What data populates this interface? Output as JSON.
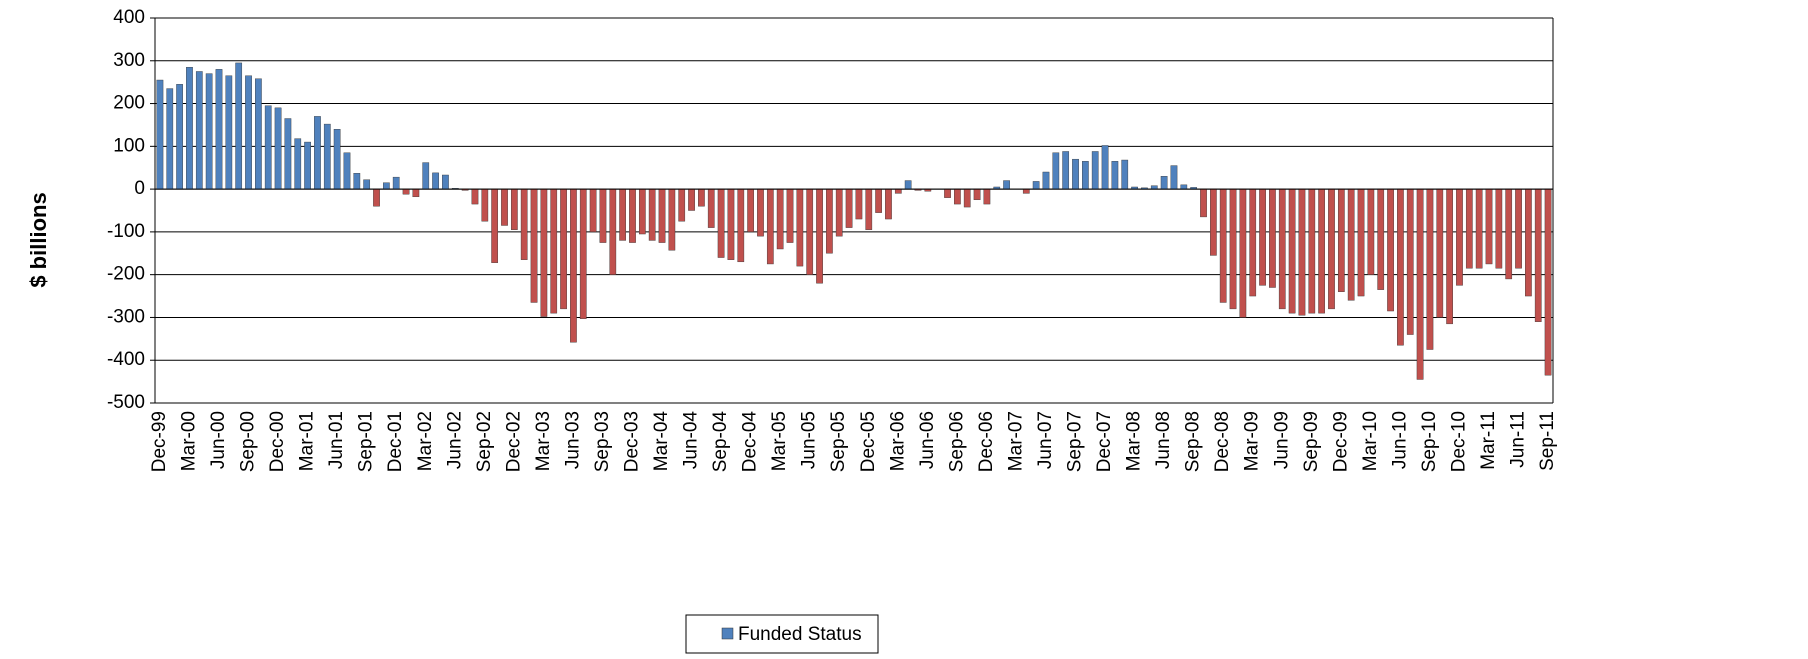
{
  "chart_data": {
    "type": "bar",
    "y_label": "$ billions",
    "ylim": [
      -500,
      400
    ],
    "yticks": [
      -500,
      -400,
      -300,
      -200,
      -100,
      0,
      100,
      200,
      300,
      400
    ],
    "grid": true,
    "legend": "bottom",
    "negative_color": "#c0504d",
    "categories": [
      "Dec-99",
      null,
      null,
      "Mar-00",
      null,
      null,
      "Jun-00",
      null,
      null,
      "Sep-00",
      null,
      null,
      "Dec-00",
      null,
      null,
      "Mar-01",
      null,
      null,
      "Jun-01",
      null,
      null,
      "Sep-01",
      null,
      null,
      "Dec-01",
      null,
      null,
      "Mar-02",
      null,
      null,
      "Jun-02",
      null,
      null,
      "Sep-02",
      null,
      null,
      "Dec-02",
      null,
      null,
      "Mar-03",
      null,
      null,
      "Jun-03",
      null,
      null,
      "Sep-03",
      null,
      null,
      "Dec-03",
      null,
      null,
      "Mar-04",
      null,
      null,
      "Jun-04",
      null,
      null,
      "Sep-04",
      null,
      null,
      "Dec-04",
      null,
      null,
      "Mar-05",
      null,
      null,
      "Jun-05",
      null,
      null,
      "Sep-05",
      null,
      null,
      "Dec-05",
      null,
      null,
      "Mar-06",
      null,
      null,
      "Jun-06",
      null,
      null,
      "Sep-06",
      null,
      null,
      "Dec-06",
      null,
      null,
      "Mar-07",
      null,
      null,
      "Jun-07",
      null,
      null,
      "Sep-07",
      null,
      null,
      "Dec-07",
      null,
      null,
      "Mar-08",
      null,
      null,
      "Jun-08",
      null,
      null,
      "Sep-08",
      null,
      null,
      "Dec-08",
      null,
      null,
      "Mar-09",
      null,
      null,
      "Jun-09",
      null,
      null,
      "Sep-09",
      null,
      null,
      "Dec-09",
      null,
      null,
      "Mar-10",
      null,
      null,
      "Jun-10",
      null,
      null,
      "Sep-10",
      null,
      null,
      "Dec-10",
      null,
      null,
      "Mar-11",
      null,
      null,
      "Jun-11",
      null,
      null,
      "Sep-11"
    ],
    "series": [
      {
        "name": "Funded Status",
        "color": "#4f81bd",
        "values": [
          255,
          235,
          245,
          285,
          275,
          270,
          280,
          265,
          295,
          265,
          258,
          195,
          190,
          165,
          118,
          110,
          170,
          152,
          140,
          85,
          37,
          22,
          -40,
          15,
          28,
          -12,
          -18,
          62,
          38,
          33,
          2,
          -3,
          -35,
          -75,
          -172,
          -85,
          -95,
          -165,
          -265,
          -298,
          -290,
          -280,
          -358,
          -303,
          -100,
          -125,
          -200,
          -120,
          -125,
          -105,
          -120,
          -125,
          -143,
          -75,
          -50,
          -40,
          -90,
          -160,
          -165,
          -170,
          -100,
          -110,
          -175,
          -140,
          -125,
          -180,
          -200,
          -220,
          -150,
          -110,
          -90,
          -70,
          -95,
          -55,
          -70,
          -10,
          20,
          -3,
          -5,
          0,
          -20,
          -35,
          -42,
          -25,
          -35,
          5,
          20,
          0,
          -10,
          18,
          40,
          85,
          88,
          70,
          65,
          88,
          102,
          65,
          68,
          5,
          3,
          8,
          30,
          55,
          10,
          4,
          -65,
          -155,
          -265,
          -280,
          -300,
          -250,
          -225,
          -230,
          -280,
          -290,
          -295,
          -290,
          -290,
          -280,
          -240,
          -260,
          -250,
          -200,
          -235,
          -285,
          -365,
          -340,
          -445,
          -375,
          -300,
          -315,
          -225,
          -185,
          -185,
          -175,
          -185,
          -210,
          -185,
          -250,
          -310,
          -435
        ]
      }
    ]
  }
}
